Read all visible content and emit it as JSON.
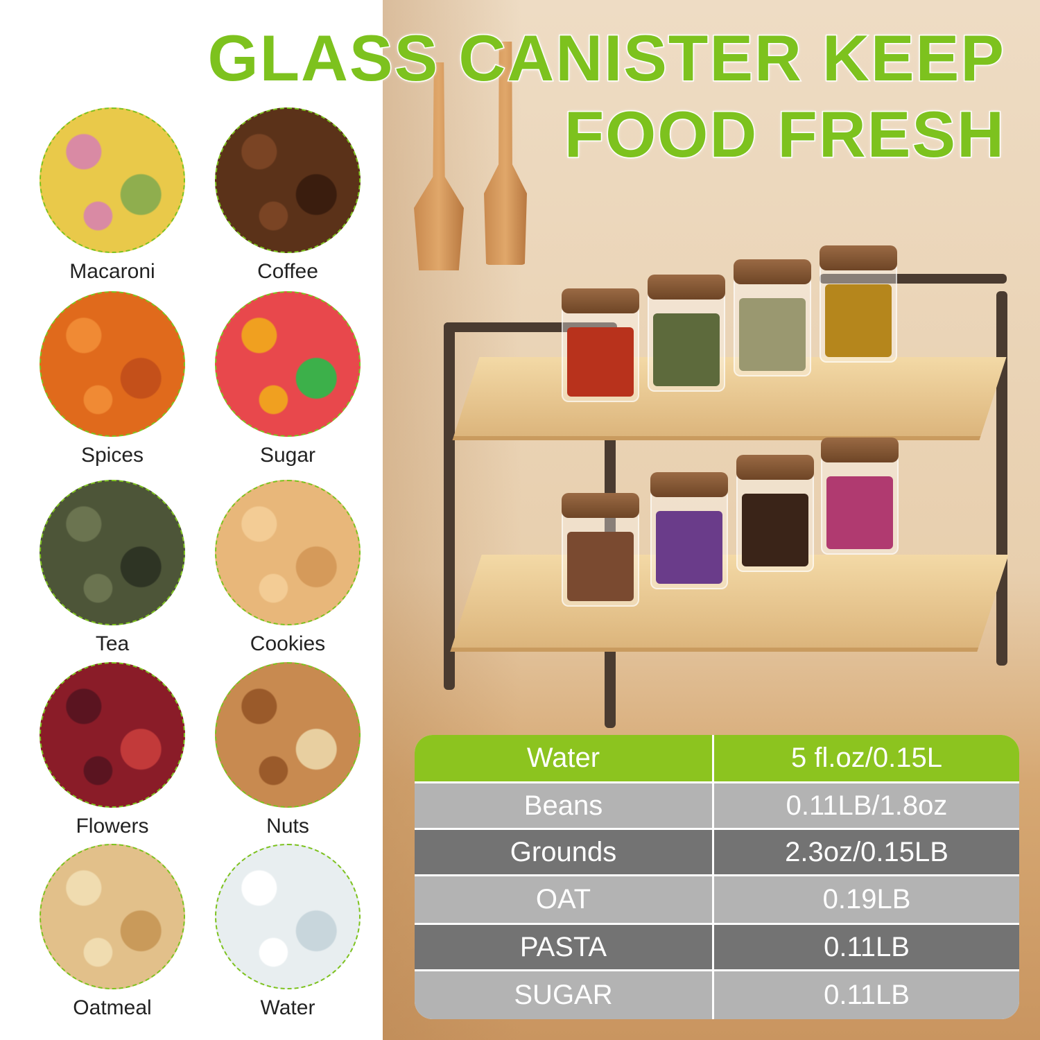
{
  "title": {
    "line1": "GLASS CANISTER KEEP",
    "line2": "FOOD FRESH",
    "color": "#7dc21e"
  },
  "foods": [
    {
      "label": "Macaroni",
      "colors": [
        "#e9c94a",
        "#8fae4e",
        "#d98aa4"
      ]
    },
    {
      "label": "Coffee",
      "colors": [
        "#5b3219",
        "#3a1d0e",
        "#7a4424"
      ]
    },
    {
      "label": "Spices",
      "colors": [
        "#e06a1c",
        "#c4501a",
        "#f08a34"
      ]
    },
    {
      "label": "Sugar",
      "colors": [
        "#e8484c",
        "#3cb04a",
        "#f0a020"
      ]
    },
    {
      "label": "Tea",
      "colors": [
        "#4d5538",
        "#2e3424",
        "#6b7450"
      ]
    },
    {
      "label": "Cookies",
      "colors": [
        "#e8b77a",
        "#d59a5a",
        "#f3cc95"
      ]
    },
    {
      "label": "Flowers",
      "colors": [
        "#8a1c28",
        "#c23a3a",
        "#5a1420"
      ]
    },
    {
      "label": "Nuts",
      "colors": [
        "#c88a50",
        "#e8cfa0",
        "#9a5a2a"
      ]
    },
    {
      "label": "Oatmeal",
      "colors": [
        "#e2c08a",
        "#c99a5a",
        "#f0dcb0"
      ]
    },
    {
      "label": "Water",
      "colors": [
        "#e8eef0",
        "#c8d6dc",
        "#ffffff"
      ]
    }
  ],
  "table": {
    "header_color": "#8cc41f",
    "light_color": "#b3b3b3",
    "dark_color": "#737373",
    "rows": [
      {
        "item": "Water",
        "capacity": "5 fl.oz/0.15L"
      },
      {
        "item": "Beans",
        "capacity": "0.11LB/1.8oz"
      },
      {
        "item": "Grounds",
        "capacity": "2.3oz/0.15LB"
      },
      {
        "item": "OAT",
        "capacity": "0.19LB"
      },
      {
        "item": "PASTA",
        "capacity": "0.11LB"
      },
      {
        "item": "SUGAR",
        "capacity": "0.11LB"
      }
    ]
  }
}
